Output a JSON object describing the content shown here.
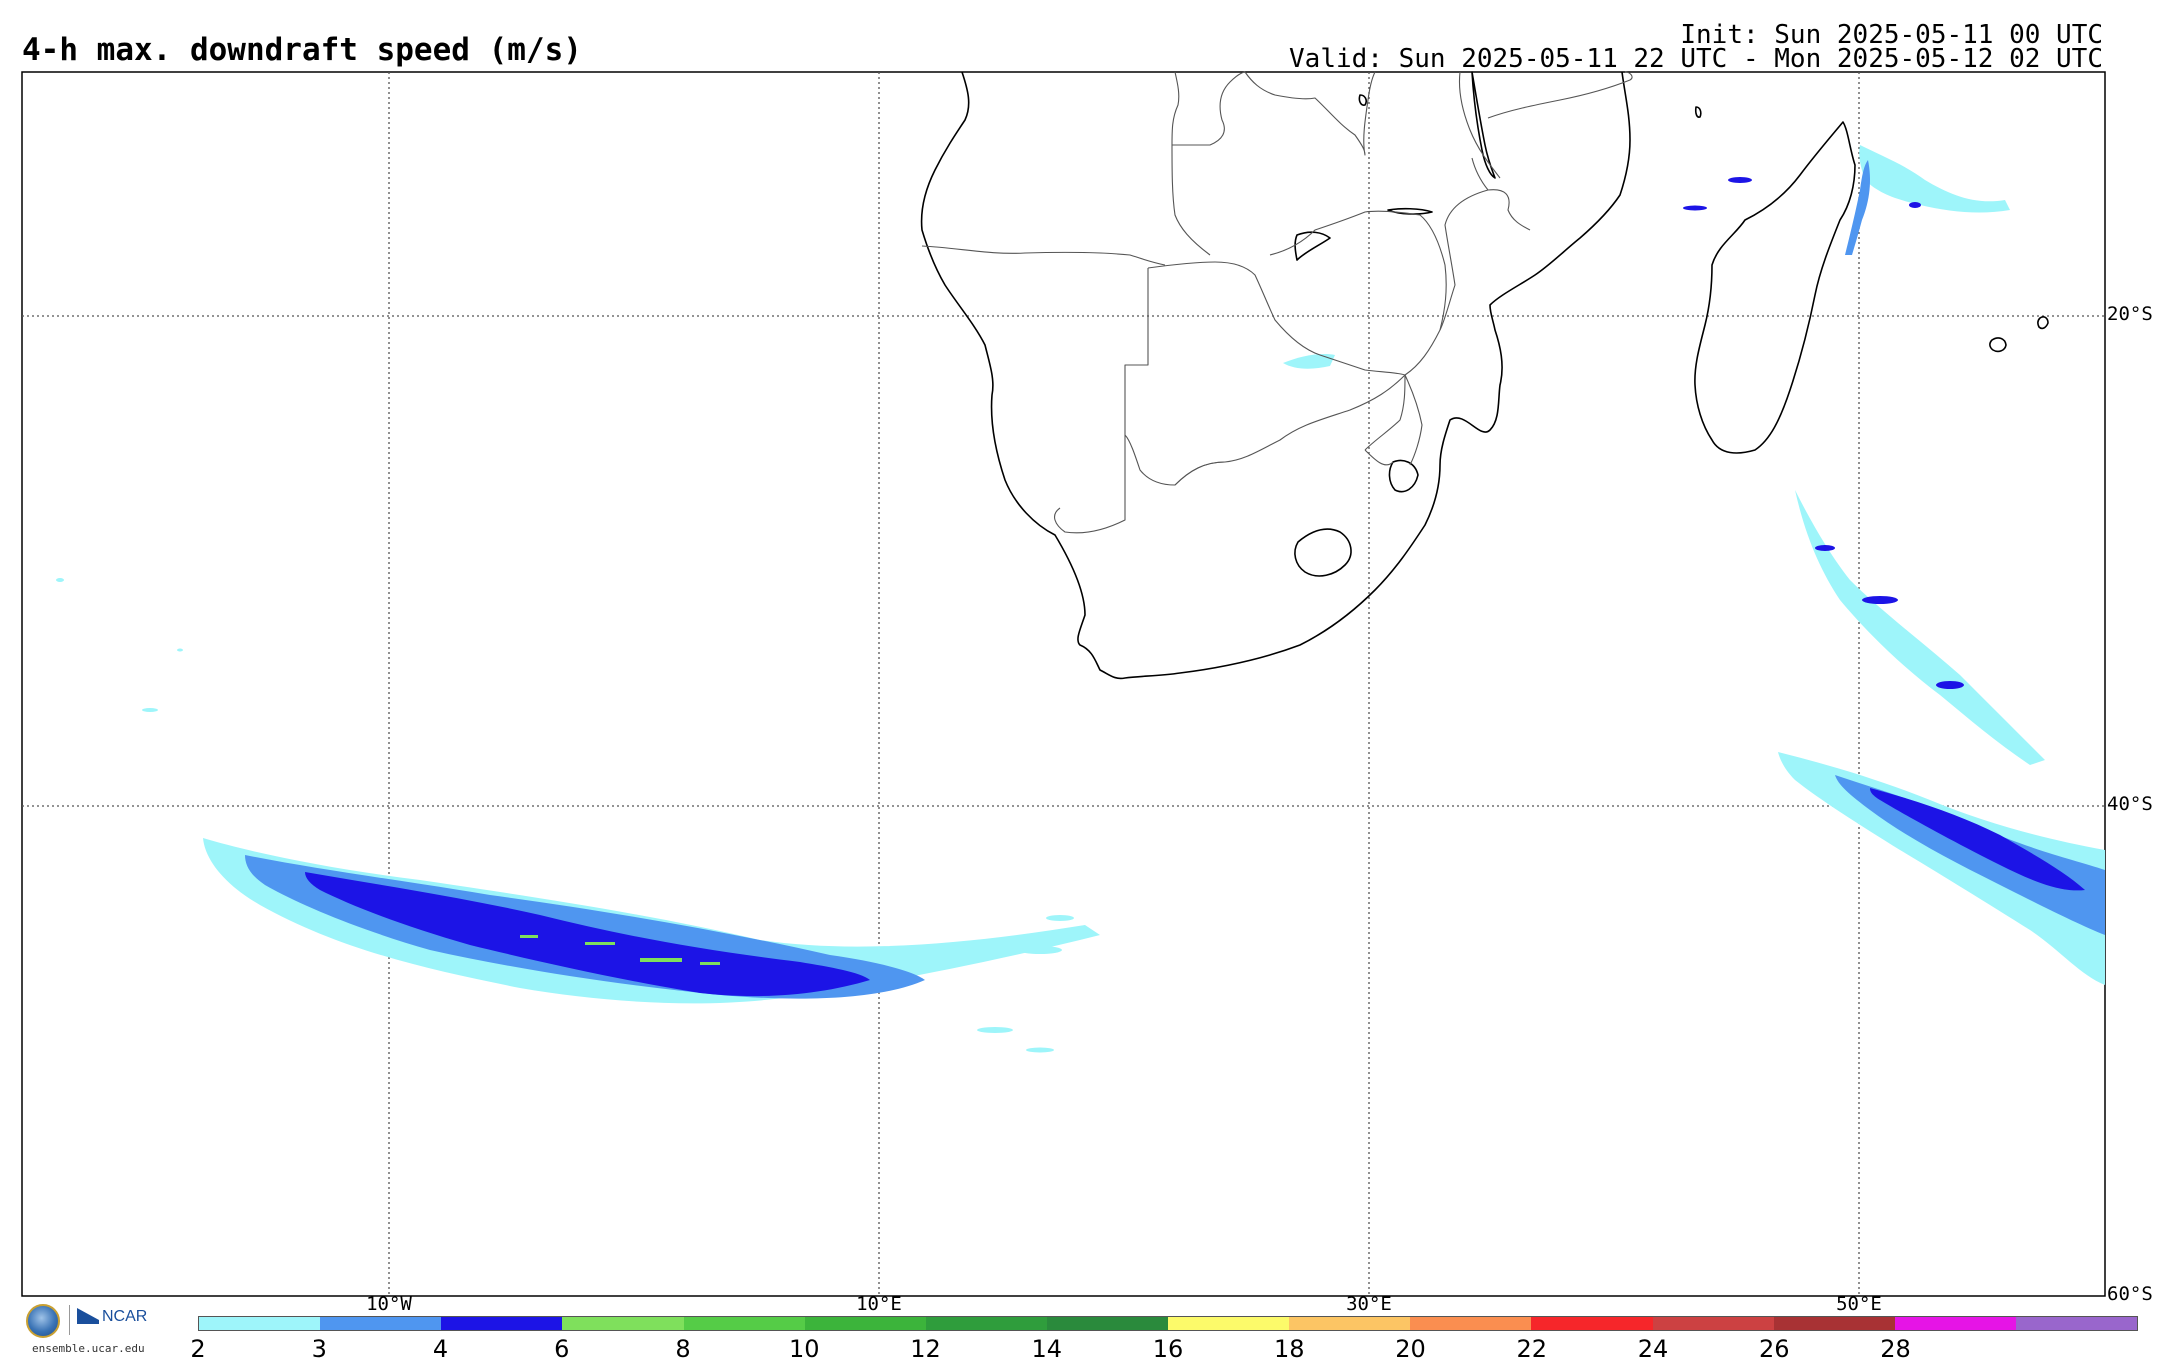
{
  "header": {
    "title": "4-h max. downdraft speed (m/s)",
    "init": "Init: Sun 2025-05-11 00 UTC",
    "valid": "Valid: Sun 2025-05-11 22 UTC - Mon 2025-05-12 02 UTC"
  },
  "map": {
    "region": "Southern Africa and South Atlantic / South Indian Ocean",
    "lat_labels": [
      "20°S",
      "40°S",
      "60°S"
    ],
    "lon_labels": [
      "10°W",
      "10°E",
      "30°E",
      "50°E"
    ],
    "gridline_style": "dotted",
    "downdraft_areas": [
      {
        "name": "South Atlantic band",
        "max_level": 10
      },
      {
        "name": "Southern Indian Ocean band",
        "max_level": 6
      },
      {
        "name": "East of Madagascar",
        "max_level": 6
      },
      {
        "name": "Botswana / Zimbabwe",
        "max_level": 3
      }
    ]
  },
  "colorbar": {
    "levels": [
      "2",
      "3",
      "4",
      "6",
      "8",
      "10",
      "12",
      "14",
      "16",
      "18",
      "20",
      "22",
      "24",
      "26",
      "28"
    ],
    "colors": [
      "#9ef5fa",
      "#4f96f0",
      "#1c14e6",
      "#7fe05c",
      "#55cc47",
      "#3cb43b",
      "#2f9d3c",
      "#2a8a3c",
      "#fcfa6a",
      "#fcc564",
      "#fa8e50",
      "#f6262a",
      "#cc4142",
      "#a83234",
      "#e614e6",
      "#9966cc"
    ]
  },
  "logos": {
    "nsf": "NSF",
    "ncar": "NCAR",
    "url": "ensemble.ucar.edu"
  }
}
